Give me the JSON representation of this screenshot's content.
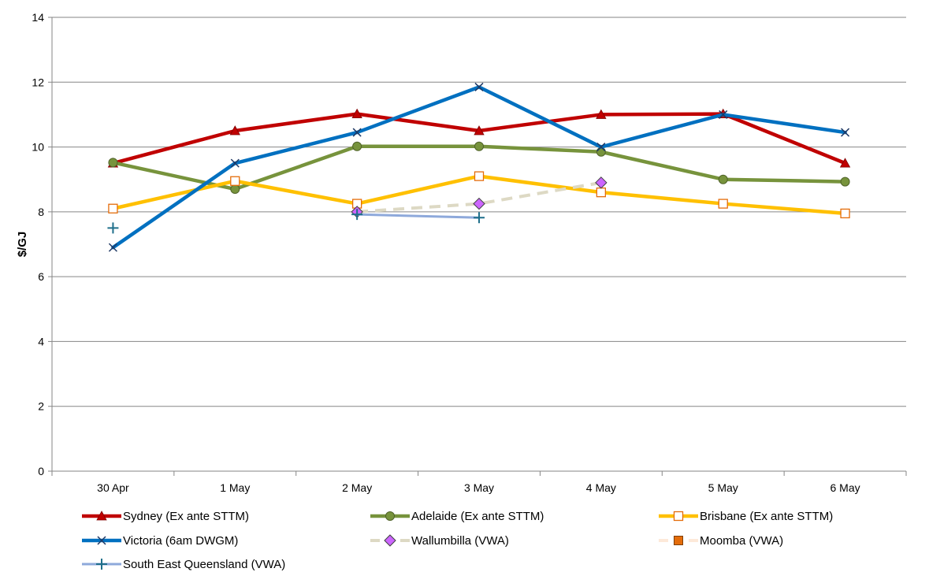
{
  "chart_data": {
    "type": "line",
    "title": "",
    "xlabel": "",
    "ylabel": "$/GJ",
    "ylim": [
      0,
      14
    ],
    "yticks": [
      0,
      2,
      4,
      6,
      8,
      10,
      12,
      14
    ],
    "grid": true,
    "legend_position": "bottom",
    "categories": [
      "30 Apr",
      "1 May",
      "2 May",
      "3 May",
      "4 May",
      "5 May",
      "6 May"
    ],
    "series": [
      {
        "name": "Sydney (Ex ante STTM)",
        "color": "#C00000",
        "marker": "triangle",
        "dashed": false,
        "values": [
          9.5,
          10.5,
          11.02,
          10.5,
          11.0,
          11.02,
          9.5
        ]
      },
      {
        "name": "Adelaide (Ex ante STTM)",
        "color": "#77933C",
        "marker": "circle",
        "dashed": false,
        "values": [
          9.52,
          8.7,
          10.02,
          10.02,
          9.85,
          9.0,
          8.93
        ]
      },
      {
        "name": "Brisbane (Ex ante STTM)",
        "color": "#FFC000",
        "marker": "open-square",
        "dashed": false,
        "values": [
          8.1,
          8.95,
          8.25,
          9.1,
          8.6,
          8.25,
          7.95
        ]
      },
      {
        "name": "Victoria (6am DWGM)",
        "color": "#0070C0",
        "marker": "x",
        "dashed": false,
        "values": [
          6.9,
          9.5,
          10.45,
          11.85,
          10.0,
          11.0,
          10.45
        ]
      },
      {
        "name": "Wallumbilla (VWA)",
        "color": "#DDD9C4",
        "marker": "diamond",
        "dashed": true,
        "values": [
          null,
          null,
          8.0,
          8.25,
          8.9,
          null,
          null
        ]
      },
      {
        "name": "Moomba (VWA)",
        "color": "#FDE9D9",
        "marker": "filled-square",
        "dashed": true,
        "values": [
          null,
          null,
          null,
          null,
          null,
          null,
          null
        ]
      },
      {
        "name": "South East Queensland (VWA)",
        "color": "#8EA9DB",
        "marker": "plus",
        "dashed": false,
        "values": [
          7.5,
          null,
          7.92,
          7.82,
          null,
          null,
          null
        ]
      }
    ]
  }
}
